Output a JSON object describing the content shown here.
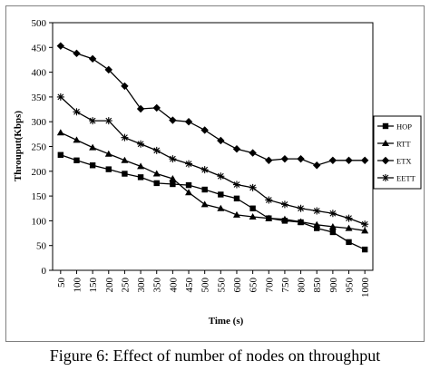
{
  "chart_data": {
    "type": "line",
    "title": "",
    "xlabel": "Time (s)",
    "ylabel": "Throuput(Kbps)",
    "ylim": [
      0,
      500
    ],
    "yticks": [
      0,
      50,
      100,
      150,
      200,
      250,
      300,
      350,
      400,
      450,
      500
    ],
    "x": [
      50,
      100,
      150,
      200,
      250,
      300,
      350,
      400,
      450,
      500,
      550,
      600,
      650,
      700,
      750,
      800,
      850,
      900,
      950,
      1000
    ],
    "grid": false,
    "legend_position": "right",
    "series": [
      {
        "name": "HOP",
        "marker": "square",
        "color": "#000000",
        "values": [
          233,
          222,
          212,
          204,
          195,
          188,
          176,
          174,
          172,
          163,
          153,
          145,
          125,
          105,
          100,
          97,
          85,
          77,
          57,
          42
        ]
      },
      {
        "name": "RTT",
        "marker": "triangle",
        "color": "#000000",
        "values": [
          278,
          263,
          248,
          235,
          222,
          210,
          195,
          185,
          157,
          133,
          125,
          112,
          108,
          105,
          103,
          98,
          92,
          88,
          85,
          80
        ]
      },
      {
        "name": "ETX",
        "marker": "diamond",
        "color": "#000000",
        "values": [
          453,
          438,
          427,
          405,
          372,
          326,
          328,
          303,
          300,
          283,
          262,
          245,
          237,
          222,
          225,
          225,
          212,
          222,
          222,
          222
        ]
      },
      {
        "name": "EETT",
        "marker": "star",
        "color": "#000000",
        "values": [
          350,
          320,
          302,
          302,
          268,
          255,
          242,
          225,
          215,
          203,
          190,
          173,
          167,
          142,
          133,
          125,
          120,
          115,
          105,
          93
        ]
      }
    ]
  },
  "caption": "Figure 6: Effect of number of nodes on throughput"
}
